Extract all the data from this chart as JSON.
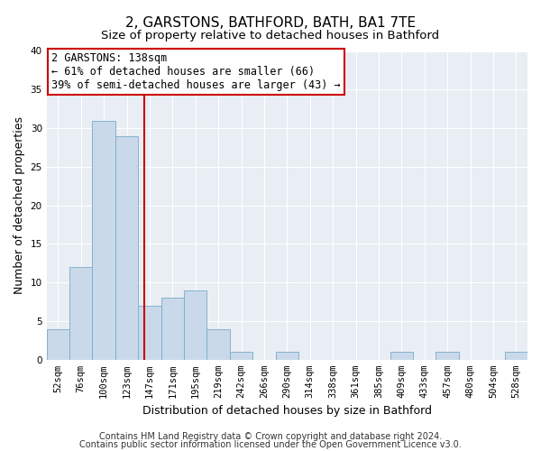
{
  "title": "2, GARSTONS, BATHFORD, BATH, BA1 7TE",
  "subtitle": "Size of property relative to detached houses in Bathford",
  "xlabel": "Distribution of detached houses by size in Bathford",
  "ylabel": "Number of detached properties",
  "bar_labels": [
    "52sqm",
    "76sqm",
    "100sqm",
    "123sqm",
    "147sqm",
    "171sqm",
    "195sqm",
    "219sqm",
    "242sqm",
    "266sqm",
    "290sqm",
    "314sqm",
    "338sqm",
    "361sqm",
    "385sqm",
    "409sqm",
    "433sqm",
    "457sqm",
    "480sqm",
    "504sqm",
    "528sqm"
  ],
  "bar_values": [
    4,
    12,
    31,
    29,
    7,
    8,
    9,
    4,
    1,
    0,
    1,
    0,
    0,
    0,
    0,
    1,
    0,
    1,
    0,
    0,
    1
  ],
  "bar_color": "#c9d9ea",
  "bar_edge_color": "#7aaac8",
  "bar_width": 1.0,
  "vline_x": 3.75,
  "vline_color": "#cc0000",
  "ylim": [
    0,
    40
  ],
  "yticks": [
    0,
    5,
    10,
    15,
    20,
    25,
    30,
    35,
    40
  ],
  "annotation_line1": "2 GARSTONS: 138sqm",
  "annotation_line2": "← 61% of detached houses are smaller (66)",
  "annotation_line3": "39% of semi-detached houses are larger (43) →",
  "annotation_box_color": "#ffffff",
  "annotation_box_edge": "#cc0000",
  "footer_line1": "Contains HM Land Registry data © Crown copyright and database right 2024.",
  "footer_line2": "Contains public sector information licensed under the Open Government Licence v3.0.",
  "bg_color": "#ffffff",
  "plot_bg_color": "#e8eef4",
  "grid_color": "#ffffff",
  "title_fontsize": 11,
  "subtitle_fontsize": 9.5,
  "axis_label_fontsize": 9,
  "tick_fontsize": 7.5,
  "annotation_fontsize": 8.5,
  "footer_fontsize": 7
}
